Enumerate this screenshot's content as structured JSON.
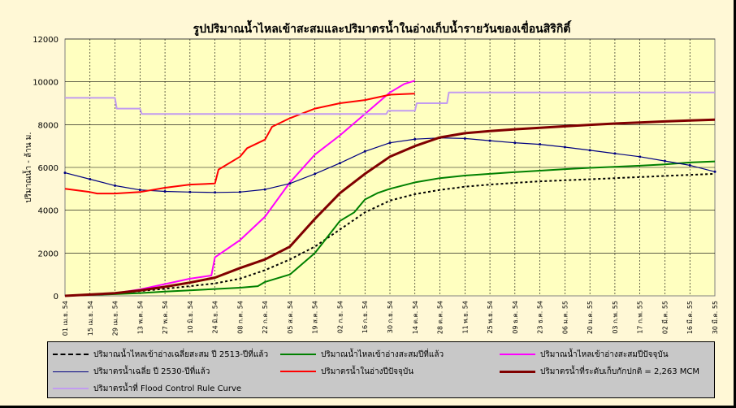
{
  "chart_data": {
    "type": "line",
    "title": "รูปปริมาณน้ำไหลเข้าสะสมและปริมาตรน้ำในอ่างเก็บน้ำรายวันของเขื่อนสิริกิติ์",
    "ylabel": "ปริมาณน้ำ - ล้าน ม.",
    "xlabel": "",
    "ylim": [
      0,
      12000
    ],
    "yticks": [
      0,
      2000,
      4000,
      6000,
      8000,
      10000,
      12000
    ],
    "x_tick_labels": [
      "01 เม.ย. 54",
      "15 เม.ย. 54",
      "29 เม.ย. 54",
      "13 พ.ค. 54",
      "27 พ.ค. 54",
      "10 มิ.ย. 54",
      "24 มิ.ย. 54",
      "08 ก.ค. 54",
      "22 ก.ค. 54",
      "05 ส.ค. 54",
      "19 ส.ค. 54",
      "02 ก.ย. 54",
      "16 ก.ย. 54",
      "30 ก.ย. 54",
      "14 ต.ค. 54",
      "28 ต.ค. 54",
      "11 พ.ย. 54",
      "25 พ.ย. 54",
      "09 ธ.ค. 54",
      "23 ธ.ค. 54",
      "06 ม.ค. 55",
      "20 ม.ค. 55",
      "03 ก.พ. 55",
      "17 ก.พ. 55",
      "02 มี.ค. 55",
      "16 มี.ค. 55",
      "30 มี.ค. 55"
    ],
    "grid": true,
    "legend_position": "bottom",
    "series": [
      {
        "name": "ปริมาณน้ำไหลเข้าอ่างเฉลี่ยสะสม ปี 2513-ปีที่แล้ว",
        "color": "#000000",
        "style": "dotted",
        "x": [
          0,
          14,
          28,
          42,
          56,
          70,
          84,
          98,
          112,
          126,
          140,
          154,
          168,
          182,
          196,
          210,
          224,
          238,
          252,
          266,
          280,
          294,
          308,
          322,
          336,
          350,
          364
        ],
        "y": [
          0,
          60,
          130,
          220,
          330,
          450,
          580,
          800,
          1200,
          1700,
          2300,
          3100,
          3900,
          4450,
          4750,
          4950,
          5100,
          5200,
          5280,
          5350,
          5400,
          5450,
          5500,
          5550,
          5600,
          5650,
          5700
        ]
      },
      {
        "name": "ปริมาณน้ำไหลเข้าอ่างสะสมปีที่แล้ว",
        "color": "#008000",
        "style": "solid",
        "x": [
          0,
          14,
          28,
          42,
          56,
          70,
          84,
          98,
          108,
          112,
          126,
          140,
          154,
          162,
          168,
          175,
          182,
          196,
          210,
          224,
          238,
          252,
          266,
          280,
          294,
          308,
          322,
          336,
          350,
          364
        ],
        "y": [
          0,
          40,
          80,
          130,
          200,
          260,
          320,
          380,
          450,
          650,
          1000,
          2000,
          3500,
          3900,
          4500,
          4800,
          5000,
          5300,
          5500,
          5620,
          5700,
          5780,
          5850,
          5920,
          5980,
          6030,
          6080,
          6140,
          6230,
          6280
        ]
      },
      {
        "name": "ปริมาณน้ำไหลเข้าอ่างสะสมปีปัจจุบัน",
        "color": "#ff00ff",
        "style": "solid",
        "x": [
          0,
          14,
          28,
          42,
          56,
          70,
          82,
          84,
          98,
          112,
          126,
          140,
          154,
          168,
          182,
          190,
          196
        ],
        "y": [
          0,
          50,
          120,
          300,
          550,
          800,
          950,
          1800,
          2600,
          3700,
          5300,
          6600,
          7500,
          8500,
          9500,
          9900,
          10050
        ]
      },
      {
        "name": "ปริมาตรน้ำเฉลี่ย ปี 2530-ปีที่แล้ว",
        "color": "#000080",
        "style": "solid-marker",
        "x": [
          0,
          14,
          28,
          42,
          56,
          70,
          84,
          98,
          112,
          126,
          140,
          154,
          168,
          182,
          196,
          210,
          224,
          238,
          252,
          266,
          280,
          294,
          308,
          322,
          336,
          350,
          364
        ],
        "y": [
          5750,
          5450,
          5150,
          4950,
          4880,
          4850,
          4830,
          4850,
          4970,
          5250,
          5700,
          6200,
          6750,
          7150,
          7320,
          7380,
          7350,
          7250,
          7150,
          7080,
          6950,
          6800,
          6650,
          6500,
          6300,
          6100,
          5800
        ]
      },
      {
        "name": "ปริมาตรน้ำในอ่างปีปัจจุบัน",
        "color": "#ff0000",
        "style": "solid",
        "x": [
          0,
          14,
          18,
          28,
          42,
          56,
          70,
          84,
          86,
          98,
          102,
          112,
          116,
          126,
          140,
          154,
          168,
          182,
          196
        ],
        "y": [
          5000,
          4850,
          4780,
          4780,
          4850,
          5050,
          5200,
          5250,
          5900,
          6500,
          6900,
          7300,
          7900,
          8300,
          8750,
          9000,
          9150,
          9400,
          9450
        ]
      },
      {
        "name": "ปริมาตรน้ำที่ระดับเก็บกักปกติ = 2,263 MCM",
        "color": "#800000",
        "style": "solid-thick",
        "x": [
          0,
          14,
          28,
          42,
          56,
          70,
          84,
          98,
          112,
          126,
          140,
          154,
          168,
          182,
          196,
          210,
          224,
          238,
          252,
          266,
          280,
          294,
          308,
          322,
          336,
          350,
          364
        ],
        "y": [
          0,
          60,
          120,
          250,
          420,
          620,
          850,
          1300,
          1700,
          2300,
          3600,
          4800,
          5700,
          6500,
          7000,
          7400,
          7600,
          7700,
          7780,
          7850,
          7920,
          7990,
          8050,
          8100,
          8150,
          8190,
          8230
        ]
      },
      {
        "name": "ปริมาตรน้ำที่ Flood Control Rule Curve",
        "color": "#c29cf0",
        "style": "step",
        "x": [
          0,
          28,
          29,
          42,
          43,
          180,
          181,
          196,
          197,
          214,
          215,
          364
        ],
        "y": [
          9250,
          9250,
          8750,
          8750,
          8500,
          8500,
          8650,
          8650,
          9000,
          9000,
          9500,
          9500
        ]
      }
    ]
  }
}
